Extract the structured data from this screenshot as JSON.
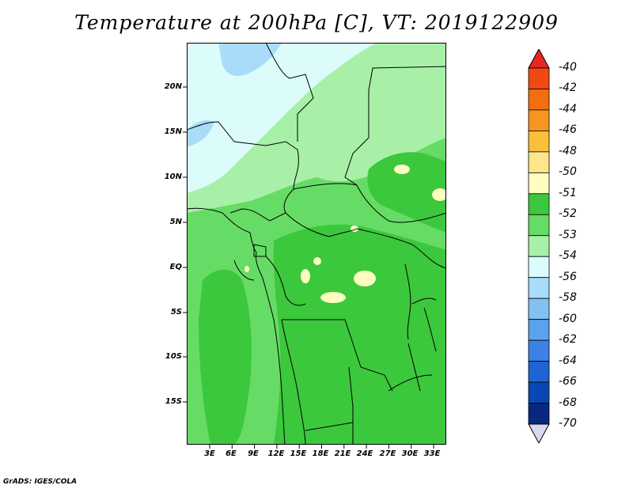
{
  "title": "Temperature at 200hPa [C], VT: 2019122909",
  "credit": "GrADS: IGES/COLA",
  "lat_labels": [
    "20N",
    "15N",
    "10N",
    "5N",
    "EQ",
    "5S",
    "10S",
    "15S"
  ],
  "lon_labels": [
    "3E",
    "6E",
    "9E",
    "12E",
    "15E",
    "18E",
    "21E",
    "24E",
    "27E",
    "30E",
    "33E"
  ],
  "colorbar": {
    "labels": [
      "-40",
      "-42",
      "-44",
      "-46",
      "-48",
      "-50",
      "-51",
      "-52",
      "-53",
      "-54",
      "-56",
      "-58",
      "-60",
      "-62",
      "-64",
      "-66",
      "-68",
      "-70"
    ],
    "colors": [
      "#e6281e",
      "#f04a12",
      "#f46d0f",
      "#f7951e",
      "#fbbf3e",
      "#fde68c",
      "#fffcc0",
      "#3cc83c",
      "#66dc66",
      "#a8f0a8",
      "#dcfcfc",
      "#a8dcf8",
      "#82c0f2",
      "#5aa2ee",
      "#3c82e6",
      "#1e64d2",
      "#0a46b4",
      "#08287d",
      "#081052"
    ],
    "top_color": "#e6281e",
    "bottom_color": "#d8d8f0"
  }
}
